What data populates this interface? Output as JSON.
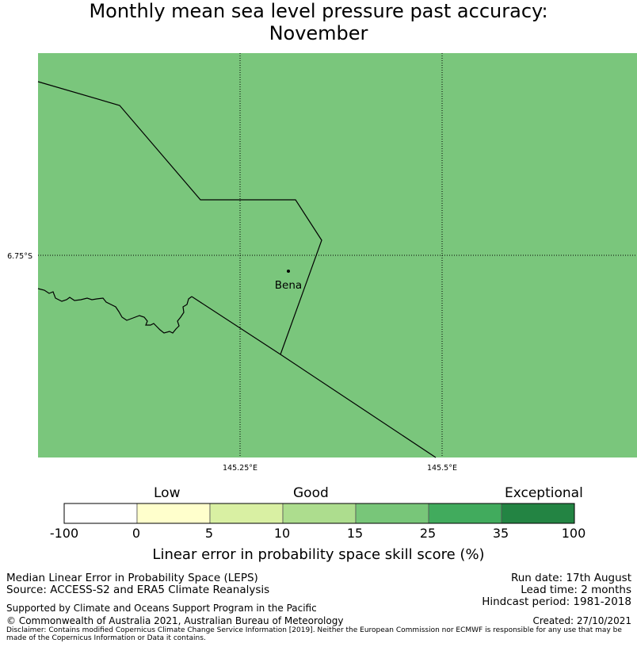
{
  "title": {
    "line1": "Monthly mean sea level pressure past accuracy:",
    "line2": "November"
  },
  "map": {
    "fill_color": "#7ac67c",
    "place_label": "Bena",
    "lat_labels": [
      "6.75°S"
    ],
    "lon_labels": [
      "145.25°E",
      "145.5°E"
    ]
  },
  "colorbar": {
    "categories": [
      "Low",
      "Good",
      "Exceptional"
    ],
    "ticks": [
      "-100",
      "0",
      "5",
      "10",
      "15",
      "25",
      "35",
      "100"
    ],
    "colors": [
      "#ffffff",
      "#ffffcc",
      "#d9f0a3",
      "#addd8e",
      "#78c679",
      "#41ab5d",
      "#238443"
    ],
    "label": "Linear error in probability space skill score (%)"
  },
  "footer": {
    "metric": "Median Linear Error in Probability Space (LEPS)",
    "source": "Source: ACCESS-S2 and ERA5 Climate Reanalysis",
    "support": "Supported by Climate and Oceans Support Program in the Pacific",
    "copyright": "© Commonwealth of Australia 2021, Australian Bureau of Meteorology",
    "disclaimer": "Disclaimer: Contains modified Copernicus Climate Change Service Information [2019]. Neither the European Commission nor ECMWF is responsible for any use that may be made of the Copernicus Information or Data it contains.",
    "run_date": "Run date: 17th August",
    "lead_time": "Lead time: 2 months",
    "hindcast": "Hindcast period: 1981-2018",
    "created": "Created: 27/10/2021"
  }
}
